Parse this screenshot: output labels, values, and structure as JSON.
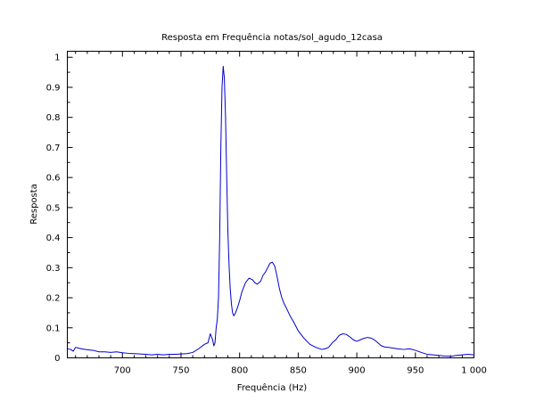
{
  "chart_data": {
    "type": "line",
    "title": "Resposta em Frequência notas/sol_agudo_12casa",
    "xlabel": "Frequência (Hz)",
    "ylabel": "Resposta",
    "xlim": [
      653,
      1000
    ],
    "ylim": [
      0,
      1.02
    ],
    "grid": false,
    "x_major_ticks": [
      700,
      750,
      800,
      850,
      900,
      950,
      1000
    ],
    "x_tick_labels": [
      "700",
      "750",
      "800",
      "850",
      "900",
      "950",
      "1 000"
    ],
    "y_major_ticks": [
      0,
      0.1,
      0.2,
      0.3,
      0.4,
      0.5,
      0.6,
      0.7,
      0.8,
      0.9,
      1
    ],
    "y_tick_labels": [
      "0",
      "0.1",
      "0.2",
      "0.3",
      "0.4",
      "0.5",
      "0.6",
      "0.7",
      "0.8",
      "0.9",
      "1"
    ],
    "colors": {
      "series": "#0000cc",
      "frame": "#000000"
    },
    "series": [
      {
        "x": [
          653,
          656,
          658,
          660,
          662,
          665,
          670,
          675,
          680,
          685,
          690,
          695,
          700,
          705,
          710,
          715,
          720,
          725,
          730,
          735,
          740,
          745,
          750,
          755,
          760,
          765,
          770,
          773,
          775,
          777,
          778,
          779,
          780,
          781,
          782,
          783,
          784,
          785,
          786,
          787,
          788,
          789,
          790,
          791,
          792,
          793,
          794,
          795,
          796,
          797,
          798,
          800,
          802,
          805,
          808,
          811,
          813,
          815,
          818,
          820,
          822,
          824,
          826,
          828,
          830,
          832,
          834,
          836,
          838,
          840,
          843,
          846,
          850,
          855,
          860,
          865,
          870,
          873,
          876,
          879,
          882,
          885,
          888,
          891,
          894,
          897,
          900,
          903,
          906,
          909,
          912,
          915,
          918,
          921,
          924,
          927,
          930,
          935,
          940,
          945,
          950,
          955,
          960,
          965,
          970,
          975,
          980,
          985,
          990,
          995,
          1000
        ],
        "y": [
          0.03,
          0.028,
          0.022,
          0.035,
          0.033,
          0.03,
          0.027,
          0.025,
          0.02,
          0.02,
          0.018,
          0.02,
          0.017,
          0.015,
          0.014,
          0.013,
          0.012,
          0.01,
          0.012,
          0.01,
          0.012,
          0.012,
          0.013,
          0.014,
          0.018,
          0.03,
          0.045,
          0.05,
          0.08,
          0.06,
          0.04,
          0.05,
          0.1,
          0.13,
          0.2,
          0.4,
          0.7,
          0.9,
          0.97,
          0.93,
          0.8,
          0.6,
          0.42,
          0.31,
          0.23,
          0.18,
          0.15,
          0.14,
          0.145,
          0.155,
          0.165,
          0.19,
          0.22,
          0.25,
          0.265,
          0.26,
          0.25,
          0.245,
          0.255,
          0.275,
          0.285,
          0.3,
          0.315,
          0.318,
          0.305,
          0.27,
          0.23,
          0.2,
          0.18,
          0.165,
          0.14,
          0.12,
          0.09,
          0.065,
          0.045,
          0.035,
          0.028,
          0.03,
          0.035,
          0.05,
          0.06,
          0.075,
          0.08,
          0.078,
          0.07,
          0.06,
          0.055,
          0.06,
          0.065,
          0.068,
          0.066,
          0.06,
          0.05,
          0.04,
          0.036,
          0.035,
          0.033,
          0.03,
          0.028,
          0.03,
          0.025,
          0.018,
          0.012,
          0.01,
          0.008,
          0.006,
          0.005,
          0.008,
          0.01,
          0.012,
          0.01
        ]
      }
    ]
  }
}
